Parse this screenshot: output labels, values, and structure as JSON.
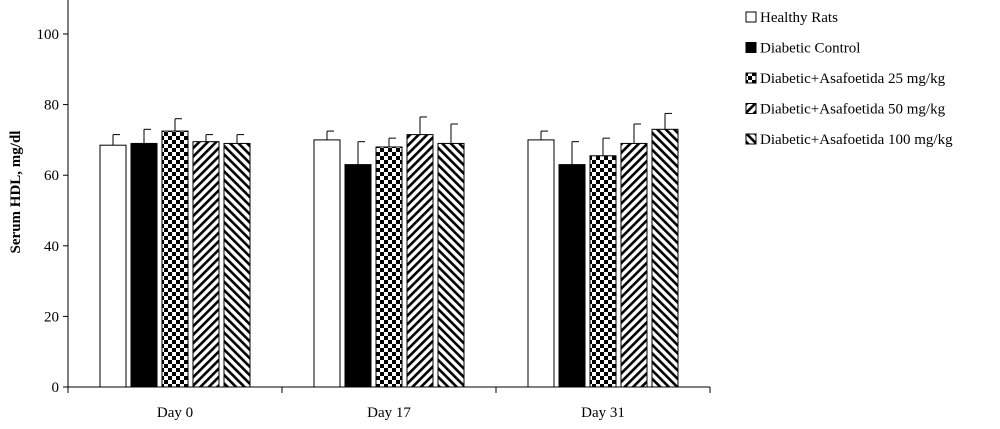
{
  "chart_data": {
    "type": "bar",
    "title": "",
    "xlabel": "",
    "ylabel": "Serum HDL, mg/dl",
    "ylim": [
      0,
      110
    ],
    "yticks": [
      0,
      20,
      40,
      60,
      80,
      100
    ],
    "categories": [
      "Day 0",
      "Day 17",
      "Day 31"
    ],
    "series": [
      {
        "name": "Healthy Rats",
        "pattern": "white",
        "values": [
          68.5,
          70,
          70
        ],
        "errors": [
          3,
          2.5,
          2.5
        ]
      },
      {
        "name": "Diabetic Control",
        "pattern": "black",
        "values": [
          69,
          63,
          63
        ],
        "errors": [
          4,
          6.5,
          6.5
        ]
      },
      {
        "name": "Diabetic+Asafoetida 25 mg/kg",
        "pattern": "checker",
        "values": [
          72.5,
          68,
          65.5
        ],
        "errors": [
          3.5,
          2.5,
          5
        ]
      },
      {
        "name": "Diabetic+Asafoetida 50 mg/kg",
        "pattern": "diag-forward",
        "values": [
          69.5,
          71.5,
          69
        ],
        "errors": [
          2,
          5,
          5.5
        ]
      },
      {
        "name": "Diabetic+Asafoetida 100 mg/kg",
        "pattern": "diag-back",
        "values": [
          69,
          69,
          73
        ],
        "errors": [
          2.5,
          5.5,
          4.5
        ]
      }
    ],
    "legend_position": "top-right",
    "grid": false
  }
}
